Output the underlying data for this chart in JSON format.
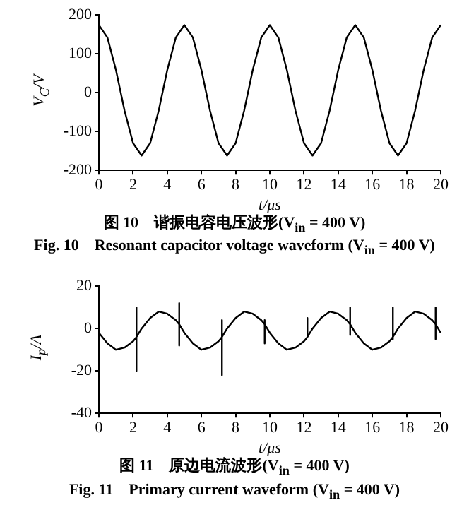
{
  "chart_data": [
    {
      "type": "line",
      "xlabel": "t/μs",
      "ylabel": "V$_{C}$/V",
      "xlim": [
        0,
        20
      ],
      "xticks": [
        0,
        2,
        4,
        6,
        8,
        10,
        12,
        14,
        16,
        18,
        20
      ],
      "ylim": [
        -200,
        200
      ],
      "yticks": [
        -200,
        -100,
        0,
        100,
        200
      ],
      "grid": false,
      "legend": false,
      "marker": "none",
      "line_style": "solid",
      "series": [
        {
          "color": "#000000",
          "x": [
            0,
            0.5,
            1,
            1.5,
            2,
            2.5,
            3,
            3.5,
            4,
            4.5,
            5,
            5.5,
            6,
            6.5,
            7,
            7.5,
            8,
            8.5,
            9,
            9.5,
            10,
            10.5,
            11,
            11.5,
            12,
            12.5,
            13,
            13.5,
            14,
            14.5,
            15,
            15.5,
            16,
            16.5,
            17,
            17.5,
            18,
            18.5,
            19,
            19.5,
            20
          ],
          "values": [
            174,
            142,
            58,
            -46,
            -130,
            -162,
            -130,
            -46,
            58,
            142,
            174,
            142,
            58,
            -46,
            -130,
            -162,
            -130,
            -46,
            58,
            142,
            174,
            142,
            58,
            -46,
            -130,
            -162,
            -130,
            -46,
            58,
            142,
            174,
            142,
            58,
            -46,
            -130,
            -162,
            -130,
            -46,
            58,
            142,
            174
          ]
        }
      ],
      "annotations": [
        "图 10　谐振电容电压波形(V$_{in}$ = 400 V)",
        "Fig. 10　Resonant capacitor voltage waveform (V$_{in}$ = 400 V)"
      ]
    },
    {
      "type": "line",
      "xlabel": "t/μs",
      "ylabel": "I$_{p}$/A",
      "xlim": [
        0,
        20
      ],
      "xticks": [
        0,
        2,
        4,
        6,
        8,
        10,
        12,
        14,
        16,
        18,
        20
      ],
      "ylim": [
        -40,
        20
      ],
      "yticks": [
        -40,
        -20,
        0,
        20
      ],
      "grid": false,
      "legend": false,
      "marker": "none",
      "line_style": "solid",
      "series": [
        {
          "color": "#000000",
          "x": [
            0,
            0.5,
            1,
            1.5,
            2,
            2.2,
            2.2,
            2.2,
            2.2,
            2.5,
            3,
            3.5,
            4,
            4.5,
            4.7,
            4.7,
            4.7,
            4.7,
            5,
            5.5,
            6,
            6.5,
            7,
            7.2,
            7.2,
            7.2,
            7.2,
            7.5,
            8,
            8.5,
            9,
            9.5,
            9.7,
            9.7,
            9.7,
            9.7,
            10,
            10.5,
            11,
            11.5,
            12,
            12.2,
            12.2,
            12.2,
            12.2,
            12.5,
            13,
            13.5,
            14,
            14.5,
            14.7,
            14.7,
            14.7,
            14.7,
            15,
            15.5,
            16,
            16.5,
            17,
            17.2,
            17.2,
            17.2,
            17.2,
            17.5,
            18,
            18.5,
            19,
            19.5,
            19.7,
            19.7,
            19.7,
            19.7,
            20
          ],
          "values": [
            -2,
            -7,
            -10,
            -9,
            -6,
            -4,
            -20,
            10,
            -4,
            0,
            5,
            8,
            7,
            4,
            2,
            -8,
            12,
            2,
            -2,
            -7,
            -10,
            -9,
            -6,
            -4,
            -22,
            4,
            -4,
            0,
            5,
            8,
            7,
            4,
            2,
            -7,
            4,
            2,
            -2,
            -7,
            -10,
            -9,
            -6,
            -4,
            -4,
            5,
            -4,
            0,
            5,
            8,
            7,
            4,
            2,
            -3,
            10,
            2,
            -2,
            -7,
            -10,
            -9,
            -6,
            -4,
            -5,
            10,
            -4,
            0,
            5,
            8,
            7,
            4,
            2,
            -5,
            10,
            2,
            -2
          ]
        }
      ],
      "annotations": [
        "图 11　原边电流波形(V$_{in}$ = 400 V)",
        "Fig. 11　Primary current waveform (V$_{in}$ = 400 V)"
      ]
    }
  ]
}
